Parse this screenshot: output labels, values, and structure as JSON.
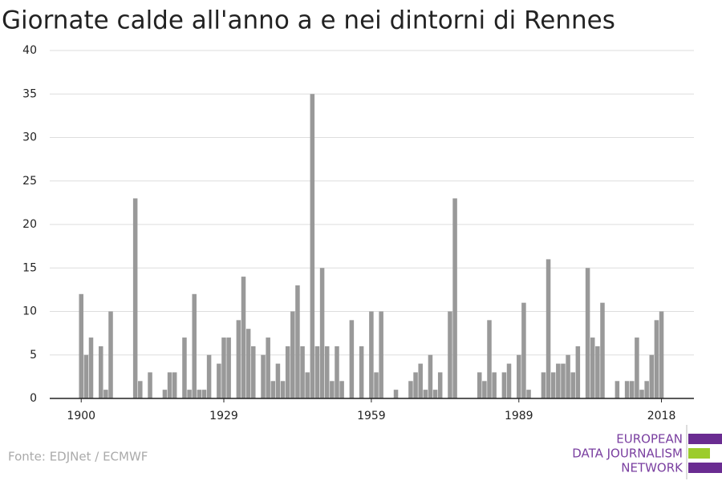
{
  "chart_data": {
    "type": "bar",
    "title": "Giornate calde all'anno a e nei dintorni di Rennes",
    "source": "Fonte: EDJNet / ECMWF",
    "logo": [
      "EUROPEAN",
      "DATA JOURNALISM",
      "NETWORK"
    ],
    "x": [
      1900,
      1901,
      1902,
      1903,
      1904,
      1905,
      1906,
      1907,
      1908,
      1909,
      1910,
      1911,
      1912,
      1913,
      1914,
      1915,
      1916,
      1917,
      1918,
      1919,
      1920,
      1921,
      1922,
      1923,
      1924,
      1925,
      1926,
      1927,
      1928,
      1929,
      1930,
      1931,
      1932,
      1933,
      1934,
      1935,
      1936,
      1937,
      1938,
      1939,
      1940,
      1941,
      1942,
      1943,
      1944,
      1945,
      1946,
      1947,
      1948,
      1949,
      1950,
      1951,
      1952,
      1953,
      1954,
      1955,
      1956,
      1957,
      1958,
      1959,
      1960,
      1961,
      1962,
      1963,
      1964,
      1965,
      1966,
      1967,
      1968,
      1969,
      1970,
      1971,
      1972,
      1973,
      1974,
      1975,
      1976,
      1977,
      1978,
      1979,
      1980,
      1981,
      1982,
      1983,
      1984,
      1985,
      1986,
      1987,
      1988,
      1989,
      1990,
      1991,
      1992,
      1993,
      1994,
      1995,
      1996,
      1997,
      1998,
      1999,
      2000,
      2001,
      2002,
      2003,
      2004,
      2005,
      2006,
      2007,
      2008,
      2009,
      2010,
      2011,
      2012,
      2013,
      2014,
      2015,
      2016,
      2017,
      2018
    ],
    "values": [
      12,
      5,
      7,
      0,
      6,
      1,
      10,
      0,
      0,
      0,
      0,
      23,
      2,
      0,
      3,
      0,
      0,
      1,
      3,
      3,
      0,
      7,
      1,
      12,
      1,
      1,
      5,
      0,
      4,
      7,
      7,
      0,
      9,
      14,
      8,
      6,
      0,
      5,
      7,
      2,
      4,
      2,
      6,
      10,
      13,
      6,
      3,
      35,
      6,
      15,
      6,
      2,
      6,
      2,
      0,
      9,
      0,
      6,
      0,
      10,
      3,
      10,
      0,
      0,
      1,
      0,
      0,
      2,
      3,
      4,
      1,
      5,
      1,
      3,
      0,
      10,
      23,
      0,
      0,
      0,
      0,
      3,
      2,
      9,
      3,
      0,
      3,
      4,
      0,
      5,
      11,
      1,
      0,
      0,
      3,
      16,
      3,
      4,
      4,
      5,
      3,
      6,
      0,
      15,
      7,
      6,
      11,
      0,
      0,
      2,
      0,
      2,
      2,
      7,
      1,
      2,
      5,
      9,
      10
    ],
    "color": "#999999",
    "xlim": [
      1893.6,
      2024.6
    ],
    "xticks": [
      1900,
      1929,
      1959,
      1989,
      2018
    ],
    "ylim": [
      0,
      40
    ],
    "yticks": [
      0,
      5,
      10,
      15,
      20,
      25,
      30,
      35,
      40
    ],
    "grid": true
  }
}
